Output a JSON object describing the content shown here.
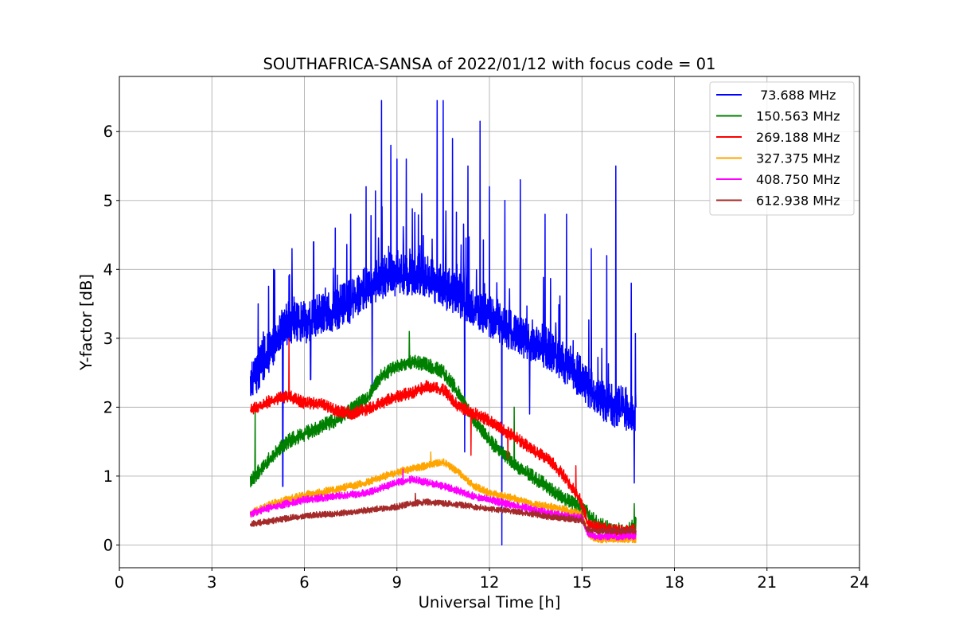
{
  "chart_data": {
    "type": "line",
    "title": "SOUTHAFRICA-SANSA of 2022/01/12 with focus code = 01",
    "xlabel": "Universal Time [h]",
    "ylabel": "Y-factor [dB]",
    "xlim": [
      0,
      24
    ],
    "ylim": [
      -0.33,
      6.8
    ],
    "xticks": [
      0,
      3,
      6,
      9,
      12,
      15,
      18,
      21,
      24
    ],
    "yticks": [
      0,
      1,
      2,
      3,
      4,
      5,
      6
    ],
    "grid": true,
    "legend_position": "top-right",
    "series": [
      {
        "name": " 73.688 MHz",
        "color": "#0000ff",
        "noise": 0.35,
        "x": [
          4.25,
          4.6,
          5.0,
          5.5,
          6.0,
          6.5,
          7.0,
          7.5,
          8.0,
          8.5,
          9.0,
          9.5,
          10.0,
          10.5,
          11.0,
          11.5,
          12.0,
          12.5,
          13.0,
          13.5,
          14.0,
          14.5,
          15.0,
          15.5,
          16.0,
          16.4,
          16.75
        ],
        "y": [
          2.3,
          2.6,
          2.9,
          3.2,
          3.2,
          3.3,
          3.4,
          3.5,
          3.7,
          3.85,
          3.9,
          3.9,
          3.85,
          3.7,
          3.6,
          3.4,
          3.3,
          3.15,
          3.0,
          2.9,
          2.8,
          2.6,
          2.4,
          2.1,
          2.0,
          1.95,
          1.9
        ],
        "spikes": [
          [
            4.5,
            3.5
          ],
          [
            5.0,
            4.0
          ],
          [
            5.6,
            4.3
          ],
          [
            6.3,
            4.4
          ],
          [
            7.0,
            4.6
          ],
          [
            7.5,
            4.8
          ],
          [
            8.0,
            5.2
          ],
          [
            8.5,
            6.45
          ],
          [
            8.8,
            5.8
          ],
          [
            9.0,
            5.6
          ],
          [
            9.3,
            5.6
          ],
          [
            9.8,
            5.1
          ],
          [
            10.3,
            6.45
          ],
          [
            10.5,
            6.45
          ],
          [
            10.8,
            5.9
          ],
          [
            11.3,
            5.5
          ],
          [
            11.7,
            6.15
          ],
          [
            12.0,
            5.2
          ],
          [
            12.5,
            5.0
          ],
          [
            13.0,
            5.3
          ],
          [
            13.8,
            4.8
          ],
          [
            14.5,
            4.8
          ],
          [
            15.3,
            4.3
          ],
          [
            15.8,
            4.2
          ],
          [
            16.1,
            5.5
          ],
          [
            16.6,
            3.8
          ]
        ],
        "dips": [
          [
            5.3,
            0.85
          ],
          [
            12.4,
            0.0
          ],
          [
            11.2,
            1.35
          ],
          [
            16.7,
            0.9
          ],
          [
            8.2,
            2.2
          ],
          [
            13.3,
            1.9
          ],
          [
            6.2,
            2.4
          ]
        ]
      },
      {
        "name": "150.563 MHz",
        "color": "#008000",
        "noise": 0.12,
        "x": [
          4.25,
          4.5,
          5.0,
          5.5,
          6.0,
          6.5,
          7.0,
          7.5,
          8.0,
          8.5,
          9.0,
          9.5,
          10.0,
          10.5,
          11.0,
          11.5,
          12.0,
          12.5,
          13.0,
          13.5,
          14.0,
          14.5,
          15.0,
          15.5,
          16.0,
          16.5,
          16.75
        ],
        "y": [
          0.9,
          1.05,
          1.3,
          1.5,
          1.6,
          1.7,
          1.8,
          1.95,
          2.1,
          2.45,
          2.6,
          2.65,
          2.6,
          2.5,
          2.2,
          1.8,
          1.5,
          1.3,
          1.1,
          0.95,
          0.8,
          0.65,
          0.55,
          0.3,
          0.2,
          0.2,
          0.3
        ],
        "spikes": [
          [
            4.4,
            2.0
          ],
          [
            9.4,
            3.1
          ],
          [
            12.8,
            2.0
          ],
          [
            16.7,
            0.6
          ]
        ],
        "dips": []
      },
      {
        "name": "269.188 MHz",
        "color": "#ff0000",
        "noise": 0.1,
        "x": [
          4.25,
          4.5,
          5.0,
          5.5,
          6.0,
          6.5,
          7.0,
          7.5,
          8.0,
          8.5,
          9.0,
          9.5,
          10.0,
          10.5,
          11.0,
          11.5,
          12.0,
          12.5,
          13.0,
          13.5,
          14.0,
          14.5,
          15.0,
          15.2,
          15.5,
          16.0,
          16.5,
          16.75
        ],
        "y": [
          1.95,
          2.0,
          2.1,
          2.15,
          2.05,
          2.05,
          1.95,
          1.9,
          1.95,
          2.05,
          2.15,
          2.2,
          2.3,
          2.25,
          2.0,
          1.9,
          1.8,
          1.65,
          1.5,
          1.35,
          1.2,
          0.95,
          0.6,
          0.3,
          0.25,
          0.2,
          0.2,
          0.2
        ],
        "spikes": [
          [
            5.5,
            3.0
          ],
          [
            14.8,
            1.15
          ],
          [
            11.4,
            1.3
          ]
        ],
        "dips": [
          [
            12.6,
            1.25
          ]
        ]
      },
      {
        "name": "327.375 MHz",
        "color": "#ffa500",
        "noise": 0.06,
        "x": [
          4.25,
          5.0,
          6.0,
          7.0,
          8.0,
          9.0,
          10.0,
          10.5,
          11.0,
          11.5,
          12.0,
          12.5,
          13.0,
          13.5,
          14.0,
          14.5,
          15.0,
          15.2,
          15.5,
          16.0,
          16.5,
          16.75
        ],
        "y": [
          0.45,
          0.6,
          0.72,
          0.8,
          0.9,
          1.05,
          1.15,
          1.2,
          1.05,
          0.85,
          0.75,
          0.7,
          0.65,
          0.58,
          0.55,
          0.5,
          0.45,
          0.15,
          0.08,
          0.08,
          0.08,
          0.08
        ],
        "spikes": [
          [
            10.1,
            1.35
          ]
        ],
        "dips": []
      },
      {
        "name": "408.750 MHz",
        "color": "#ff00ff",
        "noise": 0.06,
        "x": [
          4.25,
          5.0,
          6.0,
          7.0,
          8.0,
          9.0,
          9.5,
          10.0,
          10.5,
          11.0,
          11.5,
          12.0,
          12.5,
          13.0,
          13.5,
          14.0,
          14.5,
          15.0,
          15.2,
          15.5,
          16.0,
          16.5,
          16.75
        ],
        "y": [
          0.45,
          0.55,
          0.65,
          0.7,
          0.75,
          0.9,
          0.95,
          0.9,
          0.85,
          0.78,
          0.7,
          0.65,
          0.6,
          0.55,
          0.5,
          0.45,
          0.42,
          0.4,
          0.15,
          0.12,
          0.12,
          0.12,
          0.12
        ],
        "spikes": [
          [
            9.2,
            1.1
          ]
        ],
        "dips": []
      },
      {
        "name": "612.938 MHz",
        "color": "#a52a2a",
        "noise": 0.05,
        "x": [
          4.25,
          5.0,
          6.0,
          7.0,
          8.0,
          9.0,
          9.5,
          10.0,
          10.5,
          11.0,
          11.5,
          12.0,
          12.5,
          13.0,
          13.5,
          14.0,
          14.5,
          15.0,
          15.2,
          15.5,
          16.0,
          16.5,
          16.75
        ],
        "y": [
          0.3,
          0.35,
          0.42,
          0.45,
          0.5,
          0.55,
          0.6,
          0.62,
          0.6,
          0.58,
          0.55,
          0.52,
          0.5,
          0.47,
          0.44,
          0.4,
          0.38,
          0.35,
          0.22,
          0.2,
          0.2,
          0.2,
          0.2
        ],
        "spikes": [
          [
            9.6,
            0.75
          ],
          [
            15.0,
            0.5
          ]
        ],
        "dips": []
      }
    ]
  }
}
